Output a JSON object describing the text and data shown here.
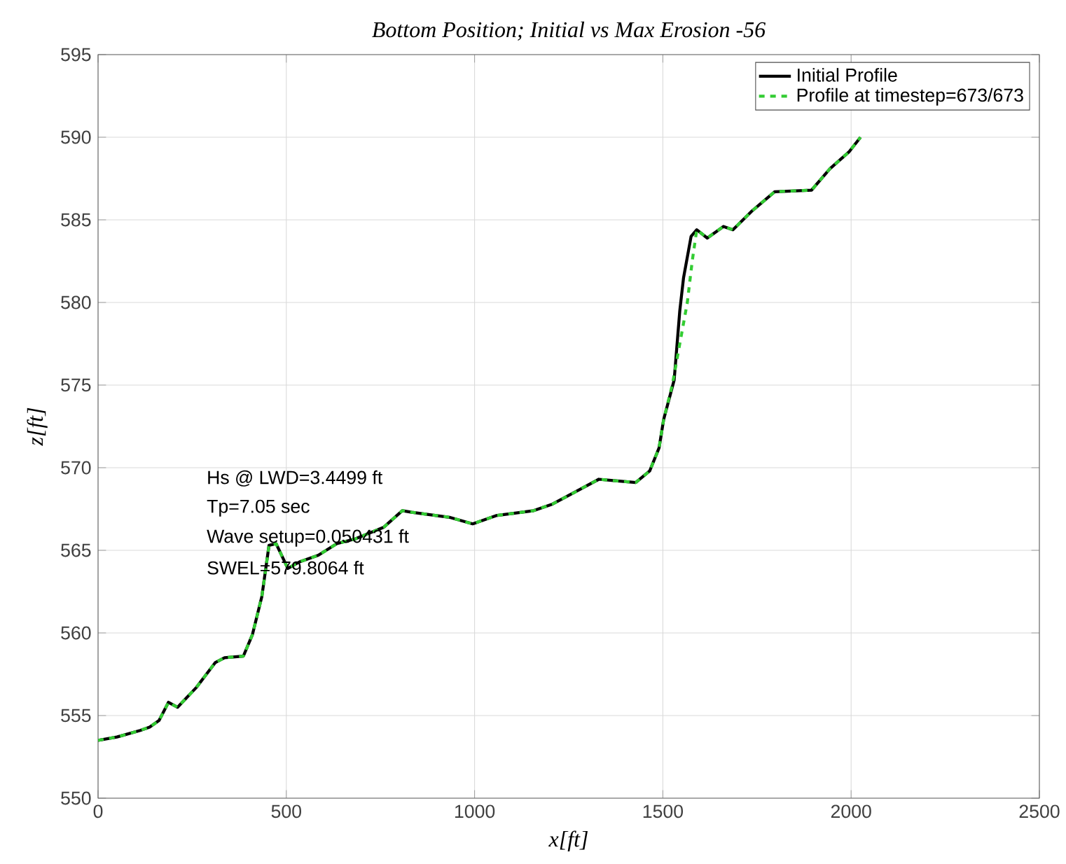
{
  "chart_data": {
    "type": "line",
    "title": "Bottom Position; Initial vs Max Erosion -56",
    "xlabel": "x[ft]",
    "ylabel": "z[ft]",
    "xlim": [
      0,
      2500
    ],
    "ylim": [
      550,
      595
    ],
    "xticks": [
      0,
      500,
      1000,
      1500,
      2000,
      2500
    ],
    "yticks": [
      550,
      555,
      560,
      565,
      570,
      575,
      580,
      585,
      590,
      595
    ],
    "grid": true,
    "legend": "top right",
    "annotations": [
      "Hs @ LWD=3.4499 ft",
      "Tp=7.05 sec",
      "Wave setup=0.050431 ft",
      "SWEL=579.8064 ft"
    ],
    "series": [
      {
        "name": "Initial Profile",
        "color": "#000000",
        "line_style": "solid",
        "x": [
          0,
          50,
          112,
          137,
          162,
          187,
          211,
          261,
          311,
          336,
          386,
          410,
          435,
          454,
          473,
          504,
          535,
          585,
          634,
          684,
          759,
          808,
          833,
          933,
          995,
          1057,
          1157,
          1207,
          1281,
          1330,
          1379,
          1428,
          1465,
          1490,
          1502,
          1530,
          1545,
          1555,
          1575,
          1590,
          1618,
          1661,
          1686,
          1735,
          1797,
          1895,
          1944,
          1994,
          2025
        ],
        "values": [
          553.5,
          553.7,
          554.1,
          554.3,
          554.7,
          555.8,
          555.5,
          556.7,
          558.2,
          558.5,
          558.6,
          559.9,
          562.2,
          565.3,
          565.4,
          563.9,
          564.3,
          564.7,
          565.4,
          565.7,
          566.4,
          567.4,
          567.3,
          567.0,
          566.6,
          567.1,
          567.4,
          567.8,
          568.7,
          569.3,
          569.2,
          569.1,
          569.8,
          571.2,
          572.9,
          575.3,
          579.5,
          581.5,
          584.0,
          584.4,
          583.9,
          584.6,
          584.4,
          585.5,
          586.7,
          586.8,
          588.1,
          589.1,
          590.0
        ]
      },
      {
        "name": "Profile at timestep=673/673",
        "color": "#33cc33",
        "line_style": "dashed",
        "x": [
          0,
          50,
          112,
          137,
          162,
          187,
          211,
          261,
          311,
          336,
          386,
          410,
          435,
          454,
          473,
          504,
          535,
          585,
          634,
          684,
          759,
          808,
          833,
          933,
          995,
          1057,
          1157,
          1207,
          1281,
          1330,
          1379,
          1428,
          1465,
          1490,
          1502,
          1525,
          1545,
          1565,
          1578,
          1590,
          1618,
          1661,
          1686,
          1735,
          1797,
          1895,
          1944,
          1994,
          2025
        ],
        "values": [
          553.5,
          553.7,
          554.1,
          554.3,
          554.7,
          555.8,
          555.5,
          556.7,
          558.2,
          558.5,
          558.6,
          559.9,
          562.2,
          565.3,
          565.4,
          563.9,
          564.3,
          564.7,
          565.4,
          565.7,
          566.4,
          567.4,
          567.3,
          567.0,
          566.6,
          567.1,
          567.4,
          567.8,
          568.7,
          569.3,
          569.2,
          569.1,
          569.8,
          571.2,
          572.9,
          575.0,
          577.5,
          580.0,
          582.5,
          584.4,
          583.9,
          584.6,
          584.4,
          585.5,
          586.7,
          586.8,
          588.1,
          589.1,
          590.0
        ]
      }
    ]
  }
}
